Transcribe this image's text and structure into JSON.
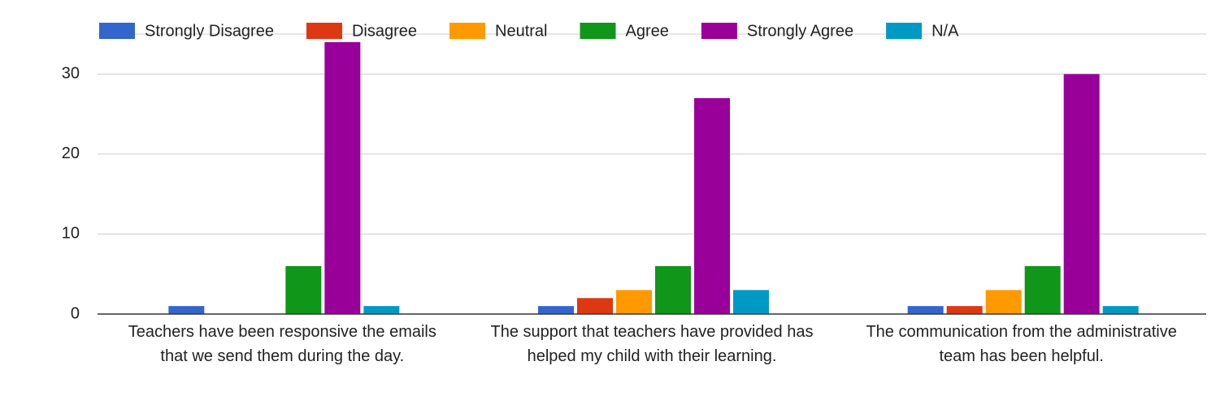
{
  "chart_data": {
    "type": "bar",
    "categories": [
      "Teachers have been responsive the emails that we send them during the day.",
      "The support that teachers have provided has helped my child with their learning.",
      "The communication from the administrative team has been helpful."
    ],
    "series": [
      {
        "name": "Strongly Disagree",
        "color": "#3366cc",
        "values": [
          1,
          1,
          1
        ]
      },
      {
        "name": "Disagree",
        "color": "#dc3912",
        "values": [
          0,
          2,
          1
        ]
      },
      {
        "name": "Neutral",
        "color": "#ff9900",
        "values": [
          0,
          3,
          3
        ]
      },
      {
        "name": "Agree",
        "color": "#109618",
        "values": [
          6,
          6,
          6
        ]
      },
      {
        "name": "Strongly Agree",
        "color": "#990099",
        "values": [
          34,
          27,
          30
        ]
      },
      {
        "name": "N/A",
        "color": "#0099c6",
        "values": [
          1,
          3,
          1
        ]
      }
    ],
    "ylim": [
      0,
      35
    ],
    "yticks": [
      0,
      10,
      20,
      30
    ],
    "grid": true,
    "legend": "top"
  }
}
